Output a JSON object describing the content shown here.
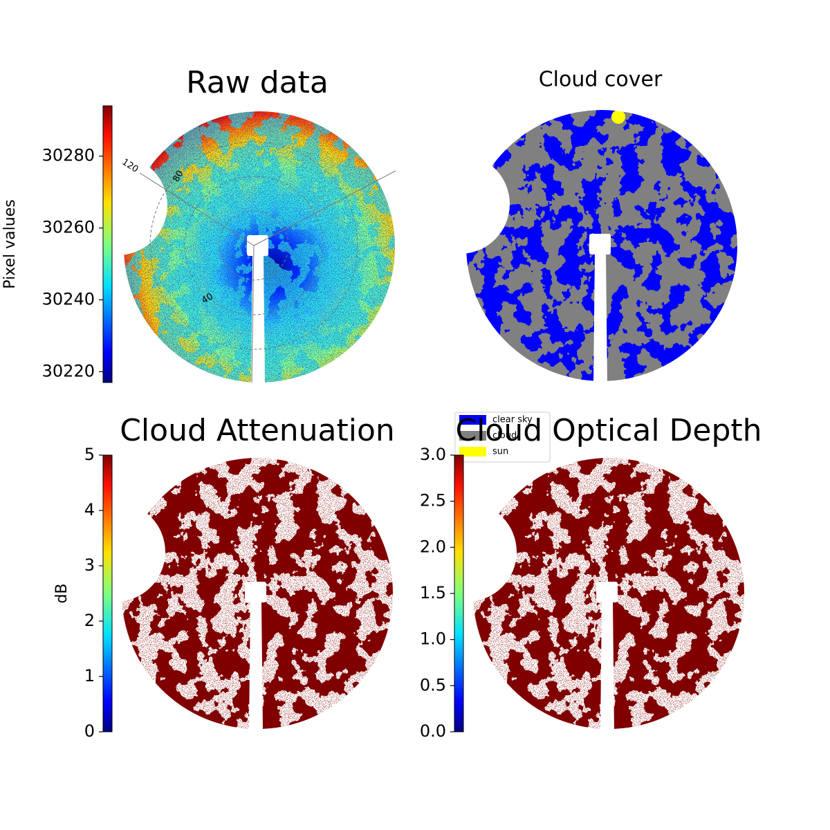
{
  "chart_data": [
    {
      "type": "image",
      "title": "Raw data",
      "ylabel": "Pixel values",
      "colormap": "jet",
      "ylim": [
        30217,
        30294
      ],
      "yticks": [
        30220,
        30240,
        30260,
        30280
      ],
      "polar_labels": [
        "120",
        "80",
        "40"
      ]
    },
    {
      "type": "image",
      "title": "Cloud cover",
      "categories": [
        "clear sky",
        "cloud",
        "sun"
      ],
      "colors": [
        "#0000ff",
        "#808080",
        "#ffff00"
      ]
    },
    {
      "type": "image",
      "title": "Cloud Attenuation",
      "ylabel": "dB",
      "colormap": "jet",
      "ylim": [
        0,
        5
      ],
      "yticks": [
        0,
        1,
        2,
        3,
        4,
        5
      ]
    },
    {
      "type": "image",
      "title": "Cloud Optical Depth",
      "colormap": "jet",
      "ylim": [
        0,
        3
      ],
      "yticks": [
        {
          "value": 0,
          "label": "0.0"
        },
        {
          "value": 0.5,
          "label": "0.5"
        },
        {
          "value": 1,
          "label": "1.0"
        },
        {
          "value": 1.5,
          "label": "1.5"
        },
        {
          "value": 2,
          "label": "2.0"
        },
        {
          "value": 2.5,
          "label": "2.5"
        },
        {
          "value": 3,
          "label": "3.0"
        }
      ]
    }
  ]
}
